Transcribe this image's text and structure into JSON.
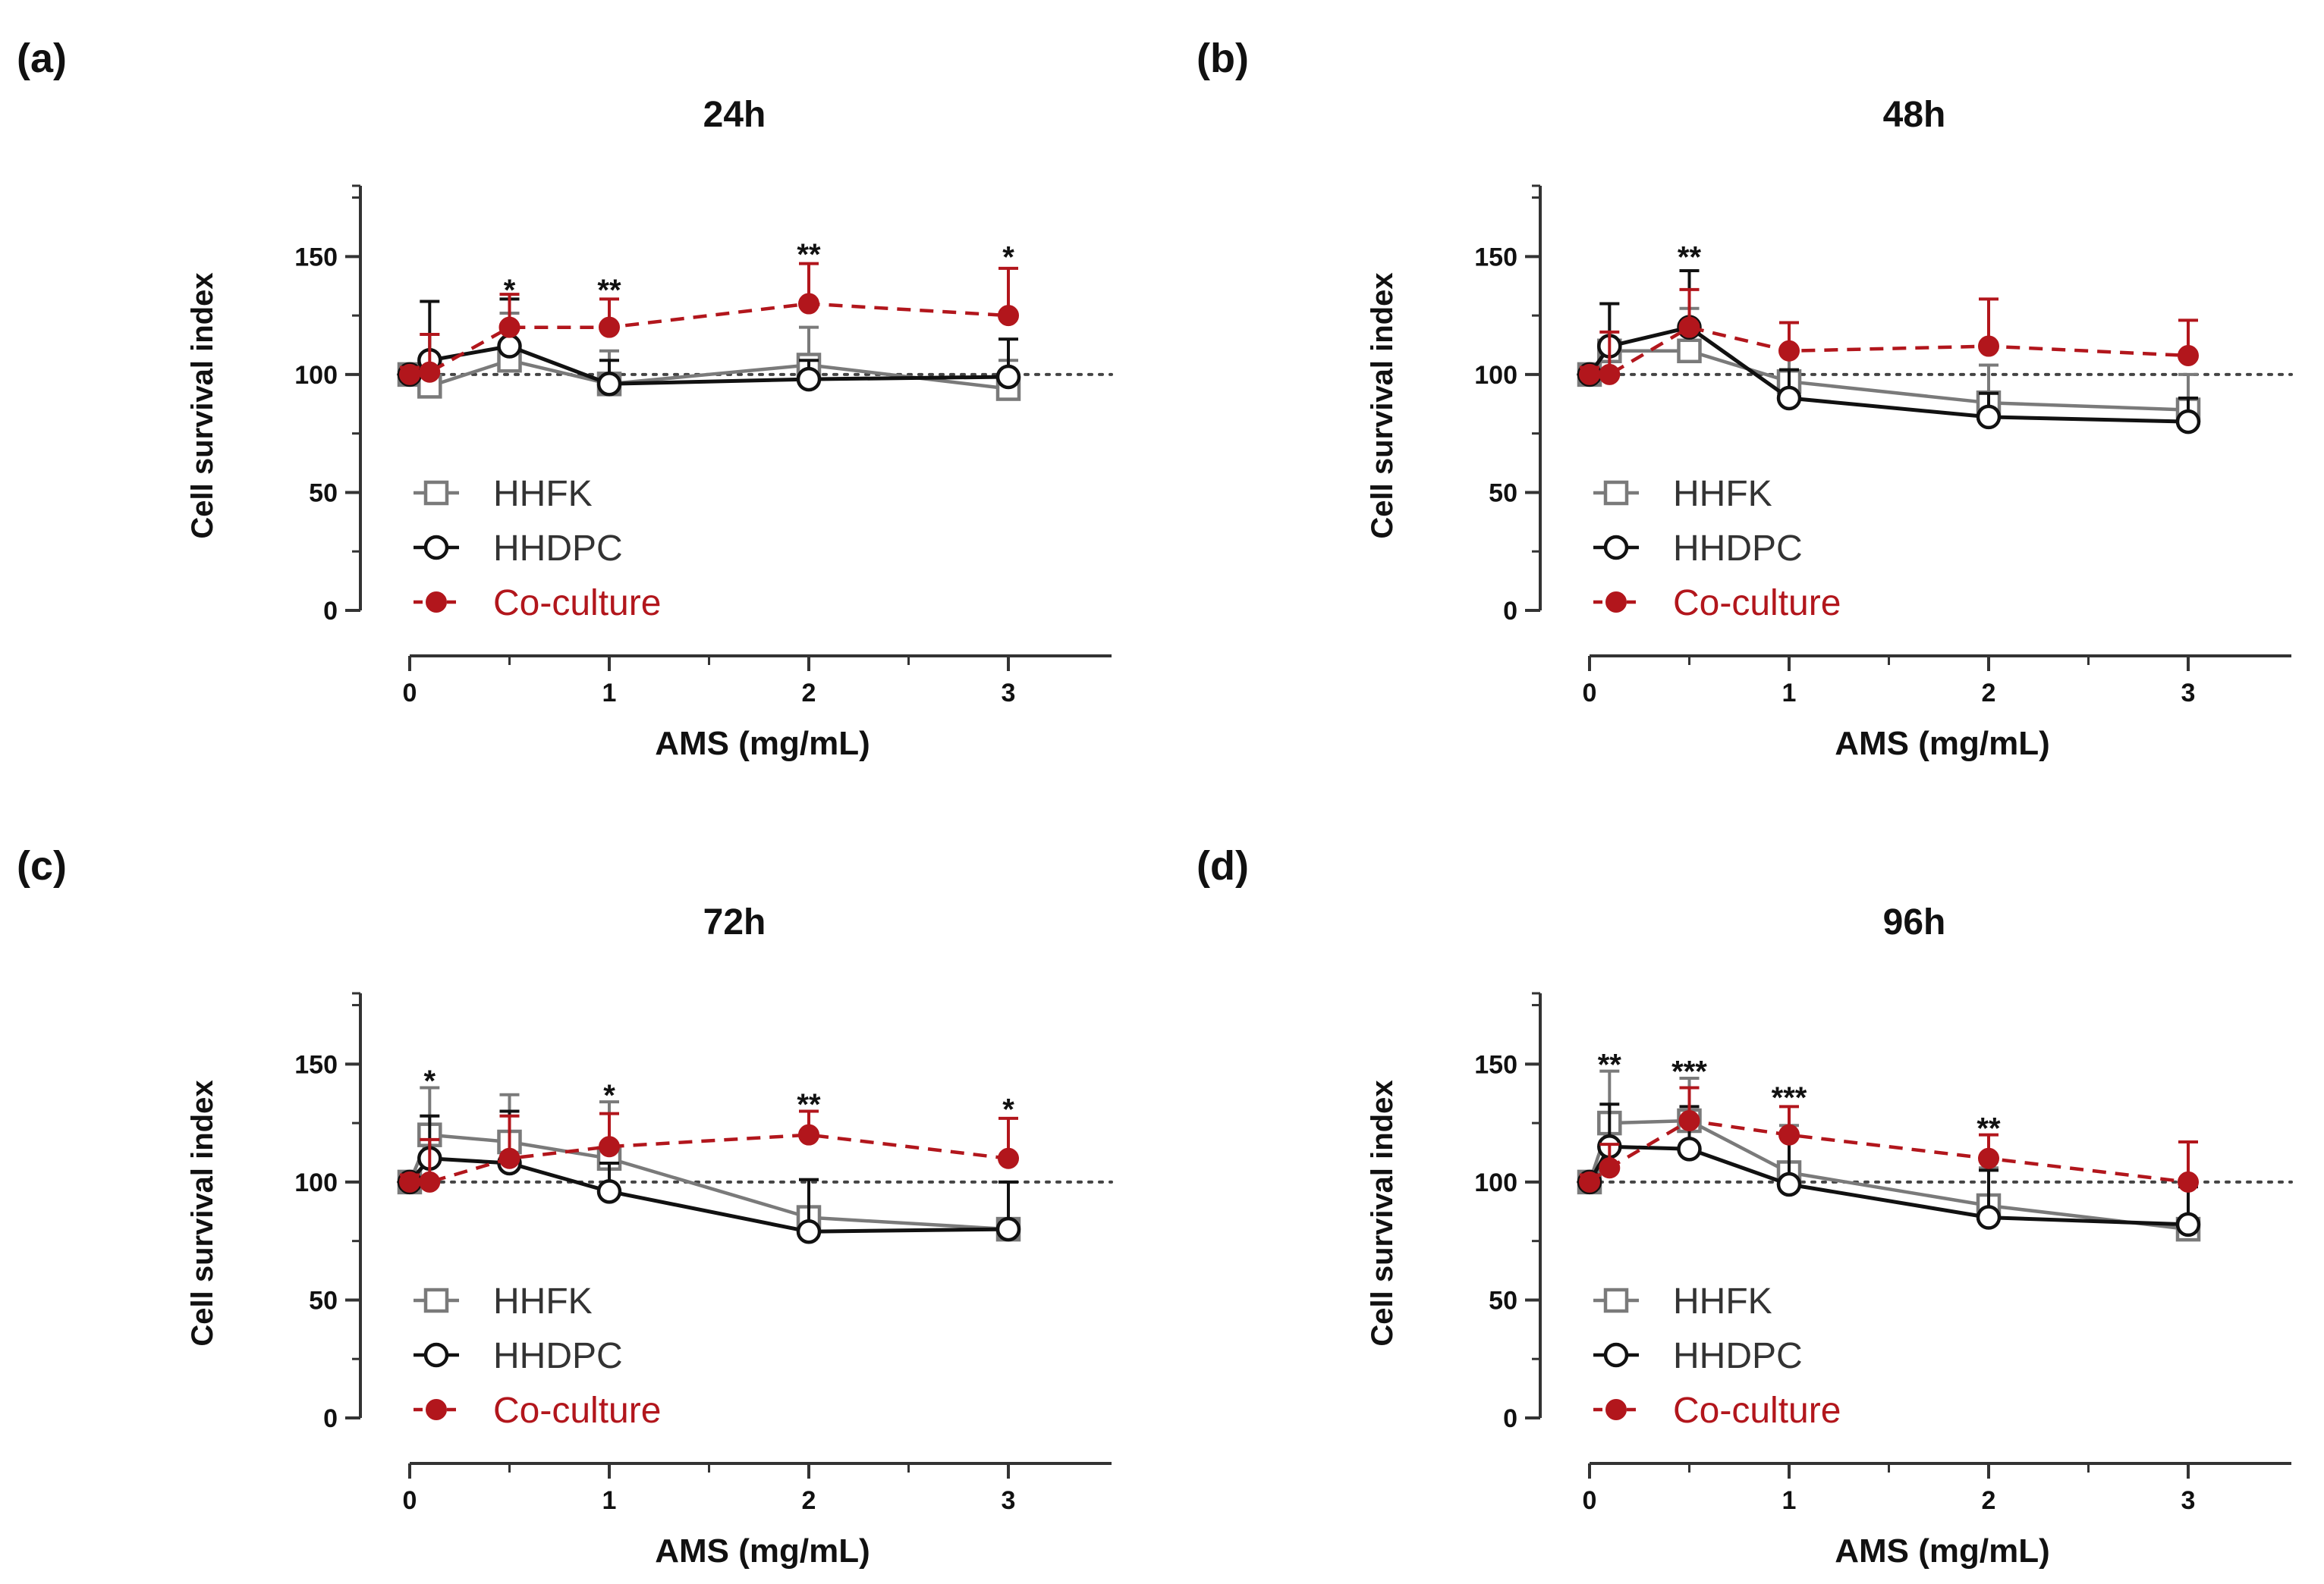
{
  "chart_data": [
    {
      "type": "line",
      "panel": "(a)",
      "title": "24h",
      "xlabel": "AMS (mg/mL)",
      "ylabel": "Cell survival index",
      "xlim": [
        0,
        3.5
      ],
      "ylim": [
        0,
        180
      ],
      "x_ticks": [
        0,
        1,
        2,
        3
      ],
      "y_ticks": [
        0,
        50,
        100,
        150
      ],
      "reference_line": 100,
      "legend_position": "bottom-left",
      "x": [
        0,
        0.1,
        0.5,
        1,
        2,
        3
      ],
      "series": [
        {
          "name": "HHFK",
          "values": [
            100,
            95,
            106,
            96,
            104,
            94
          ],
          "error": [
            3,
            22,
            20,
            14,
            16,
            12
          ]
        },
        {
          "name": "HHDPC",
          "values": [
            100,
            106,
            112,
            96,
            98,
            99
          ],
          "error": [
            3,
            25,
            20,
            10,
            8,
            16
          ]
        },
        {
          "name": "Co-culture",
          "values": [
            100,
            101,
            120,
            120,
            130,
            125
          ],
          "error": [
            3,
            16,
            14,
            12,
            17,
            20
          ]
        }
      ],
      "significance": [
        {
          "x": 0.5,
          "y": 136,
          "text": "*"
        },
        {
          "x": 1,
          "y": 136,
          "text": "**"
        },
        {
          "x": 2,
          "y": 151,
          "text": "**"
        },
        {
          "x": 3,
          "y": 150,
          "text": "*"
        }
      ]
    },
    {
      "type": "line",
      "panel": "(b)",
      "title": "48h",
      "xlabel": "AMS (mg/mL)",
      "ylabel": "Cell survival index",
      "xlim": [
        0,
        3.5
      ],
      "ylim": [
        0,
        180
      ],
      "x_ticks": [
        0,
        1,
        2,
        3
      ],
      "y_ticks": [
        0,
        50,
        100,
        150
      ],
      "reference_line": 100,
      "legend_position": "bottom-left",
      "x": [
        0,
        0.1,
        0.5,
        1,
        2,
        3
      ],
      "series": [
        {
          "name": "HHFK",
          "values": [
            100,
            110,
            110,
            97,
            88,
            85
          ],
          "error": [
            3,
            20,
            18,
            14,
            16,
            15
          ]
        },
        {
          "name": "HHDPC",
          "values": [
            100,
            112,
            120,
            90,
            82,
            80
          ],
          "error": [
            3,
            18,
            24,
            12,
            10,
            10
          ]
        },
        {
          "name": "Co-culture",
          "values": [
            100,
            100,
            120,
            110,
            112,
            108
          ],
          "error": [
            3,
            18,
            16,
            12,
            20,
            15
          ]
        }
      ],
      "significance": [
        {
          "x": 0.5,
          "y": 150,
          "text": "**"
        }
      ]
    },
    {
      "type": "line",
      "panel": "(c)",
      "title": "72h",
      "xlabel": "AMS (mg/mL)",
      "ylabel": "Cell survival index",
      "xlim": [
        0,
        3.5
      ],
      "ylim": [
        0,
        180
      ],
      "x_ticks": [
        0,
        1,
        2,
        3
      ],
      "y_ticks": [
        0,
        50,
        100,
        150
      ],
      "reference_line": 100,
      "legend_position": "bottom-left",
      "x": [
        0,
        0.1,
        0.5,
        1,
        2,
        3
      ],
      "series": [
        {
          "name": "HHFK",
          "values": [
            100,
            120,
            117,
            110,
            85,
            80
          ],
          "error": [
            3,
            20,
            20,
            24,
            16,
            20
          ]
        },
        {
          "name": "HHDPC",
          "values": [
            100,
            110,
            108,
            96,
            79,
            80
          ],
          "error": [
            3,
            18,
            22,
            12,
            22,
            20
          ]
        },
        {
          "name": "Co-culture",
          "values": [
            100,
            100,
            110,
            115,
            120,
            110
          ],
          "error": [
            3,
            18,
            18,
            14,
            10,
            17
          ]
        }
      ],
      "significance": [
        {
          "x": 0.1,
          "y": 143,
          "text": "*"
        },
        {
          "x": 1,
          "y": 137,
          "text": "*"
        },
        {
          "x": 2,
          "y": 133,
          "text": "**"
        },
        {
          "x": 3,
          "y": 131,
          "text": "*"
        }
      ]
    },
    {
      "type": "line",
      "panel": "(d)",
      "title": "96h",
      "xlabel": "AMS (mg/mL)",
      "ylabel": "Cell survival index",
      "xlim": [
        0,
        3.5
      ],
      "ylim": [
        0,
        180
      ],
      "x_ticks": [
        0,
        1,
        2,
        3
      ],
      "y_ticks": [
        0,
        50,
        100,
        150
      ],
      "reference_line": 100,
      "legend_position": "bottom-left",
      "x": [
        0,
        0.1,
        0.5,
        1,
        2,
        3
      ],
      "series": [
        {
          "name": "HHFK",
          "values": [
            100,
            125,
            126,
            104,
            90,
            80
          ],
          "error": [
            3,
            22,
            18,
            20,
            16,
            18
          ]
        },
        {
          "name": "HHDPC",
          "values": [
            100,
            115,
            114,
            99,
            85,
            82
          ],
          "error": [
            3,
            18,
            18,
            20,
            20,
            16
          ]
        },
        {
          "name": "Co-culture",
          "values": [
            100,
            106,
            126,
            120,
            110,
            100
          ],
          "error": [
            3,
            10,
            14,
            12,
            10,
            17
          ]
        }
      ],
      "significance": [
        {
          "x": 0.1,
          "y": 150,
          "text": "**"
        },
        {
          "x": 0.5,
          "y": 147,
          "text": "***"
        },
        {
          "x": 1,
          "y": 136,
          "text": "***"
        },
        {
          "x": 2,
          "y": 123,
          "text": "**"
        }
      ]
    }
  ],
  "colors": {
    "HHFK": "#7a7a7a",
    "HHDPC": "#111111",
    "Co-culture": "#b2161c",
    "axis": "#333333",
    "reference": "#444444"
  },
  "markers": {
    "HHFK": "open-square",
    "HHDPC": "open-circle",
    "Co-culture": "filled-circle"
  }
}
